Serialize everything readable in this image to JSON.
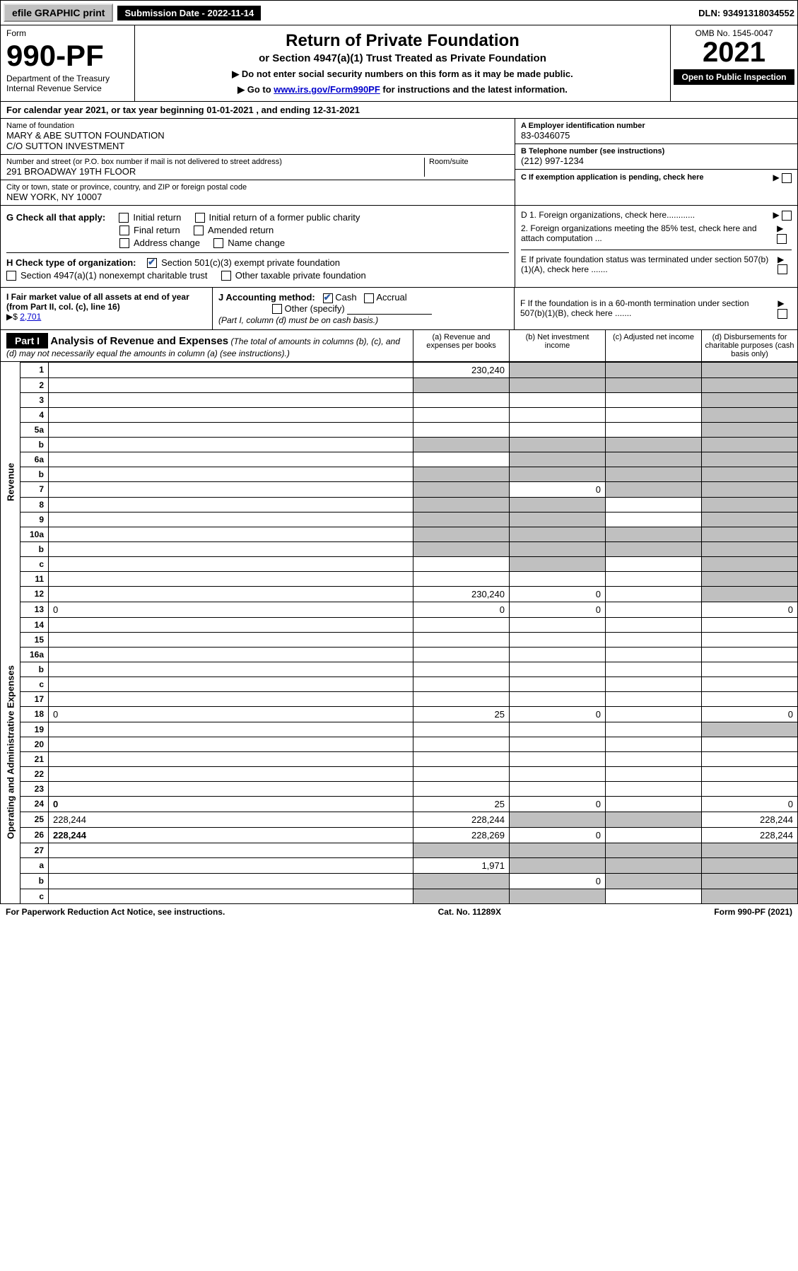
{
  "topbar": {
    "efile": "efile GRAPHIC print",
    "submission": "Submission Date - 2022-11-14",
    "dln": "DLN: 93491318034552"
  },
  "header": {
    "form_label": "Form",
    "form_no": "990-PF",
    "dept": "Department of the Treasury",
    "irs": "Internal Revenue Service",
    "title": "Return of Private Foundation",
    "subtitle": "or Section 4947(a)(1) Trust Treated as Private Foundation",
    "note1": "▶ Do not enter social security numbers on this form as it may be made public.",
    "note2_pre": "▶ Go to ",
    "note2_link": "www.irs.gov/Form990PF",
    "note2_post": " for instructions and the latest information.",
    "omb": "OMB No. 1545-0047",
    "year": "2021",
    "open": "Open to Public Inspection"
  },
  "cal_year": "For calendar year 2021, or tax year beginning 01-01-2021              , and ending 12-31-2021",
  "id": {
    "name_lbl": "Name of foundation",
    "name": "MARY & ABE SUTTON FOUNDATION\nC/O SUTTON INVESTMENT",
    "addr_lbl": "Number and street (or P.O. box number if mail is not delivered to street address)",
    "addr": "291 BROADWAY 19TH FLOOR",
    "room_lbl": "Room/suite",
    "city_lbl": "City or town, state or province, country, and ZIP or foreign postal code",
    "city": "NEW YORK, NY  10007",
    "ein_lbl": "A Employer identification number",
    "ein": "83-0346075",
    "tel_lbl": "B Telephone number (see instructions)",
    "tel": "(212) 997-1234",
    "c_lbl": "C If exemption application is pending, check here",
    "d1": "D 1. Foreign organizations, check here............",
    "d2": "2. Foreign organizations meeting the 85% test, check here and attach computation ...",
    "e_lbl": "E  If private foundation status was terminated under section 507(b)(1)(A), check here .......",
    "f_lbl": "F  If the foundation is in a 60-month termination under section 507(b)(1)(B), check here ......."
  },
  "g": {
    "label": "G Check all that apply:",
    "initial": "Initial return",
    "initial_former": "Initial return of a former public charity",
    "final": "Final return",
    "amended": "Amended return",
    "address": "Address change",
    "name": "Name change"
  },
  "h": {
    "label": "H Check type of organization:",
    "501c3": "Section 501(c)(3) exempt private foundation",
    "4947": "Section 4947(a)(1) nonexempt charitable trust",
    "other": "Other taxable private foundation"
  },
  "i": {
    "label": "I Fair market value of all assets at end of year (from Part II, col. (c), line 16) ",
    "arrow": "▶$ ",
    "value": "2,701"
  },
  "j": {
    "label": "J Accounting method:",
    "cash": "Cash",
    "accrual": "Accrual",
    "other": "Other (specify)",
    "note": "(Part I, column (d) must be on cash basis.)"
  },
  "part1": {
    "label": "Part I",
    "title": "Analysis of Revenue and Expenses",
    "desc": " (The total of amounts in columns (b), (c), and (d) may not necessarily equal the amounts in column (a) (see instructions).)",
    "col_a": "(a) Revenue and expenses per books",
    "col_b": "(b) Net investment income",
    "col_c": "(c) Adjusted net income",
    "col_d": "(d) Disbursements for charitable purposes (cash basis only)"
  },
  "side": {
    "revenue": "Revenue",
    "expenses": "Operating and Administrative Expenses"
  },
  "rows": [
    {
      "n": "1",
      "d": "",
      "a": "230,240",
      "b": "",
      "c": "",
      "sb": true,
      "sc": true,
      "sd": true
    },
    {
      "n": "2",
      "d": "",
      "a": "",
      "b": "",
      "c": "",
      "sa": true,
      "sb": true,
      "sc": true,
      "sd": true
    },
    {
      "n": "3",
      "d": "",
      "a": "",
      "b": "",
      "c": "",
      "sd": true
    },
    {
      "n": "4",
      "d": "",
      "a": "",
      "b": "",
      "c": "",
      "sd": true
    },
    {
      "n": "5a",
      "d": "",
      "a": "",
      "b": "",
      "c": "",
      "sd": true
    },
    {
      "n": "b",
      "d": "",
      "a": "",
      "b": "",
      "c": "",
      "sa": true,
      "sb": true,
      "sc": true,
      "sd": true
    },
    {
      "n": "6a",
      "d": "",
      "a": "",
      "b": "",
      "c": "",
      "sb": true,
      "sc": true,
      "sd": true
    },
    {
      "n": "b",
      "d": "",
      "a": "",
      "b": "",
      "c": "",
      "sa": true,
      "sb": true,
      "sc": true,
      "sd": true
    },
    {
      "n": "7",
      "d": "",
      "a": "",
      "b": "0",
      "c": "",
      "sa": true,
      "sc": true,
      "sd": true
    },
    {
      "n": "8",
      "d": "",
      "a": "",
      "b": "",
      "c": "",
      "sa": true,
      "sb": true,
      "sd": true
    },
    {
      "n": "9",
      "d": "",
      "a": "",
      "b": "",
      "c": "",
      "sa": true,
      "sb": true,
      "sd": true
    },
    {
      "n": "10a",
      "d": "",
      "a": "",
      "b": "",
      "c": "",
      "sa": true,
      "sb": true,
      "sc": true,
      "sd": true
    },
    {
      "n": "b",
      "d": "",
      "a": "",
      "b": "",
      "c": "",
      "sa": true,
      "sb": true,
      "sc": true,
      "sd": true
    },
    {
      "n": "c",
      "d": "",
      "a": "",
      "b": "",
      "c": "",
      "sb": true,
      "sd": true
    },
    {
      "n": "11",
      "d": "",
      "a": "",
      "b": "",
      "c": "",
      "sd": true
    },
    {
      "n": "12",
      "d": "",
      "bold": true,
      "a": "230,240",
      "b": "0",
      "c": "",
      "sd": true
    },
    {
      "n": "13",
      "d": "0",
      "a": "0",
      "b": "0",
      "c": ""
    },
    {
      "n": "14",
      "d": "",
      "a": "",
      "b": "",
      "c": ""
    },
    {
      "n": "15",
      "d": "",
      "a": "",
      "b": "",
      "c": ""
    },
    {
      "n": "16a",
      "d": "",
      "a": "",
      "b": "",
      "c": ""
    },
    {
      "n": "b",
      "d": "",
      "a": "",
      "b": "",
      "c": ""
    },
    {
      "n": "c",
      "d": "",
      "a": "",
      "b": "",
      "c": ""
    },
    {
      "n": "17",
      "d": "",
      "a": "",
      "b": "",
      "c": ""
    },
    {
      "n": "18",
      "d": "0",
      "a": "25",
      "b": "0",
      "c": ""
    },
    {
      "n": "19",
      "d": "",
      "a": "",
      "b": "",
      "c": "",
      "sd": true
    },
    {
      "n": "20",
      "d": "",
      "a": "",
      "b": "",
      "c": ""
    },
    {
      "n": "21",
      "d": "",
      "a": "",
      "b": "",
      "c": ""
    },
    {
      "n": "22",
      "d": "",
      "a": "",
      "b": "",
      "c": ""
    },
    {
      "n": "23",
      "d": "",
      "a": "",
      "b": "",
      "c": ""
    },
    {
      "n": "24",
      "d": "0",
      "bold": true,
      "a": "25",
      "b": "0",
      "c": ""
    },
    {
      "n": "25",
      "d": "228,244",
      "a": "228,244",
      "b": "",
      "c": "",
      "sb": true,
      "sc": true
    },
    {
      "n": "26",
      "d": "228,244",
      "bold": true,
      "a": "228,269",
      "b": "0",
      "c": ""
    },
    {
      "n": "27",
      "d": "",
      "a": "",
      "b": "",
      "c": "",
      "sa": true,
      "sb": true,
      "sc": true,
      "sd": true
    },
    {
      "n": "a",
      "d": "",
      "bold": true,
      "a": "1,971",
      "b": "",
      "c": "",
      "sb": true,
      "sc": true,
      "sd": true
    },
    {
      "n": "b",
      "d": "",
      "bold": true,
      "a": "",
      "b": "0",
      "c": "",
      "sa": true,
      "sc": true,
      "sd": true
    },
    {
      "n": "c",
      "d": "",
      "bold": true,
      "a": "",
      "b": "",
      "c": "",
      "sa": true,
      "sb": true,
      "sd": true
    }
  ],
  "footer": {
    "left": "For Paperwork Reduction Act Notice, see instructions.",
    "center": "Cat. No. 11289X",
    "right": "Form 990-PF (2021)"
  },
  "colors": {
    "shade": "#c0c0c0",
    "link": "#0000cc",
    "check": "#2a5aa5"
  }
}
